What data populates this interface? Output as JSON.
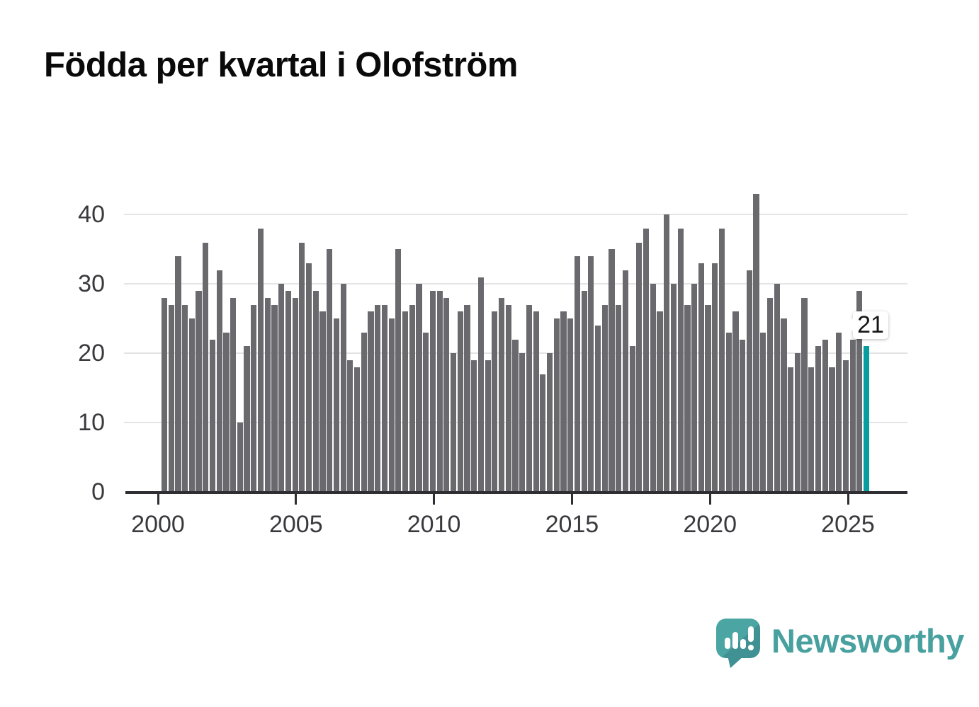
{
  "title": "Födda per kvartal i Olofström",
  "branding": {
    "name": "Newsworthy"
  },
  "chart_data": {
    "type": "bar",
    "title": "Födda per kvartal i Olofström",
    "xlabel": "",
    "ylabel": "",
    "ylim": [
      0,
      44
    ],
    "grid": "horizontal",
    "yticks": [
      0,
      10,
      20,
      30,
      40
    ],
    "xticks": [
      2000,
      2005,
      2010,
      2015,
      2020,
      2025
    ],
    "start_quarter": "2000 Q1",
    "end_quarter": "2025 Q3",
    "bar_color": "#69696e",
    "highlight_color": "#089ea1",
    "highlight_last_bar": true,
    "last_value_label": "21",
    "by_year": [
      {
        "year": 2000,
        "q": [
          28,
          27,
          34,
          27
        ]
      },
      {
        "year": 2001,
        "q": [
          25,
          29,
          36,
          22
        ]
      },
      {
        "year": 2002,
        "q": [
          32,
          23,
          28,
          10
        ]
      },
      {
        "year": 2003,
        "q": [
          21,
          27,
          38,
          28
        ]
      },
      {
        "year": 2004,
        "q": [
          27,
          30,
          29,
          28
        ]
      },
      {
        "year": 2005,
        "q": [
          36,
          33,
          29,
          26
        ]
      },
      {
        "year": 2006,
        "q": [
          35,
          25,
          30,
          19
        ]
      },
      {
        "year": 2007,
        "q": [
          18,
          23,
          26,
          27
        ]
      },
      {
        "year": 2008,
        "q": [
          27,
          25,
          35,
          26
        ]
      },
      {
        "year": 2009,
        "q": [
          27,
          30,
          23,
          29
        ]
      },
      {
        "year": 2010,
        "q": [
          29,
          28,
          20,
          26
        ]
      },
      {
        "year": 2011,
        "q": [
          27,
          19,
          31,
          19
        ]
      },
      {
        "year": 2012,
        "q": [
          26,
          28,
          27,
          22
        ]
      },
      {
        "year": 2013,
        "q": [
          20,
          27,
          26,
          17
        ]
      },
      {
        "year": 2014,
        "q": [
          20,
          25,
          26,
          25
        ]
      },
      {
        "year": 2015,
        "q": [
          34,
          29,
          34,
          24
        ]
      },
      {
        "year": 2016,
        "q": [
          27,
          35,
          27,
          32
        ]
      },
      {
        "year": 2017,
        "q": [
          21,
          36,
          38,
          30
        ]
      },
      {
        "year": 2018,
        "q": [
          26,
          40,
          30,
          38
        ]
      },
      {
        "year": 2019,
        "q": [
          27,
          30,
          33,
          27
        ]
      },
      {
        "year": 2020,
        "q": [
          33,
          38,
          23,
          26
        ]
      },
      {
        "year": 2021,
        "q": [
          22,
          32,
          43,
          23
        ]
      },
      {
        "year": 2022,
        "q": [
          28,
          30,
          25,
          18
        ]
      },
      {
        "year": 2023,
        "q": [
          20,
          28,
          18,
          21
        ]
      },
      {
        "year": 2024,
        "q": [
          22,
          18,
          23,
          19
        ]
      },
      {
        "year": 2025,
        "q": [
          22,
          29,
          21
        ]
      }
    ]
  }
}
